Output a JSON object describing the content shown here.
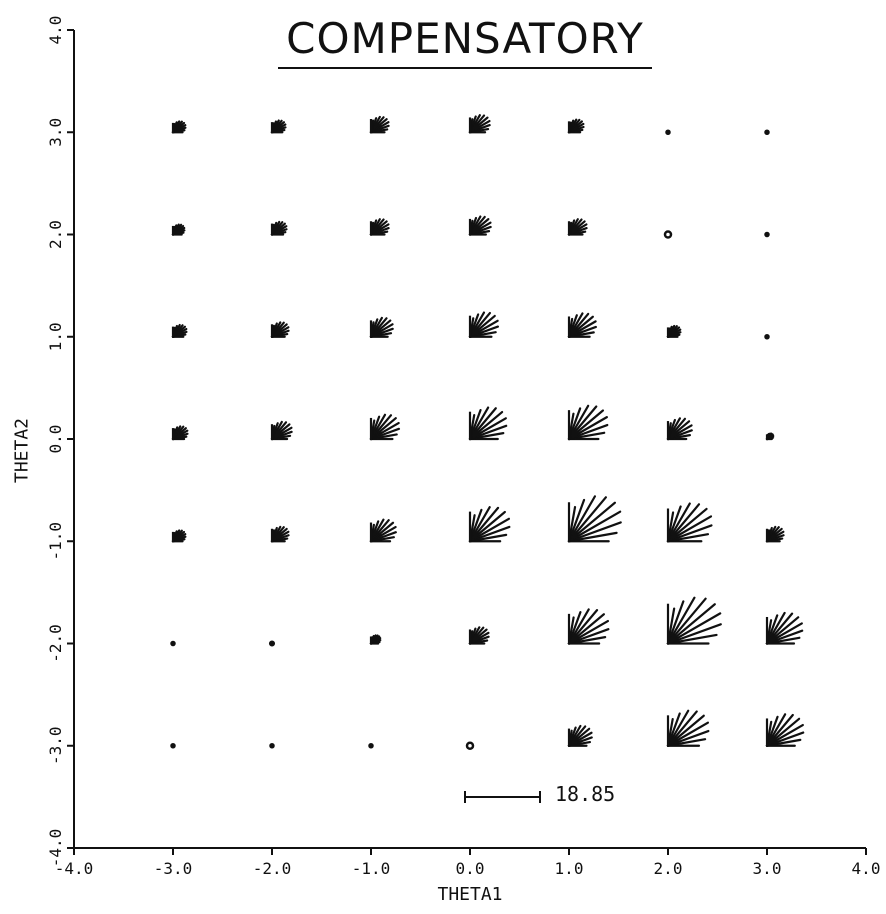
{
  "chart_data": {
    "type": "scatter",
    "title": "COMPENSATORY",
    "xlabel": "THETA1",
    "ylabel": "THETA2",
    "xlim": [
      -4.0,
      4.0
    ],
    "ylim": [
      -4.0,
      4.0
    ],
    "grid": false,
    "xticks": [
      "-4.0",
      "-3.0",
      "-2.0",
      "-1.0",
      "0.0",
      "1.0",
      "2.0",
      "3.0",
      "4.0"
    ],
    "yticks": [
      "-4.0",
      "-3.0",
      "-2.0",
      "-1.0",
      "0.0",
      "1.0",
      "2.0",
      "3.0",
      "4.0"
    ],
    "glyph": "fan of rays; ray length proportional to value, scale bar shown",
    "scale_bar_value": "18.85",
    "x": [
      -3,
      -2,
      -1,
      0,
      1,
      2,
      3
    ],
    "y": [
      3,
      2,
      1,
      0,
      -1,
      -2,
      -3
    ],
    "glyph_size": [
      [
        1.2,
        1.3,
        1.7,
        1.9,
        1.4,
        0.2,
        0.1
      ],
      [
        1.1,
        1.4,
        1.7,
        2.0,
        1.7,
        0.5,
        0.1
      ],
      [
        1.3,
        1.6,
        2.1,
        2.7,
        2.6,
        1.2,
        0.2
      ],
      [
        1.4,
        1.9,
        2.7,
        3.5,
        3.7,
        2.3,
        0.6
      ],
      [
        1.2,
        1.6,
        2.4,
        3.8,
        5.0,
        4.2,
        1.6
      ],
      [
        0.2,
        0.3,
        0.9,
        1.8,
        3.8,
        5.1,
        3.4
      ],
      [
        0.1,
        0.2,
        0.2,
        0.5,
        2.2,
        3.9,
        3.5
      ]
    ]
  }
}
